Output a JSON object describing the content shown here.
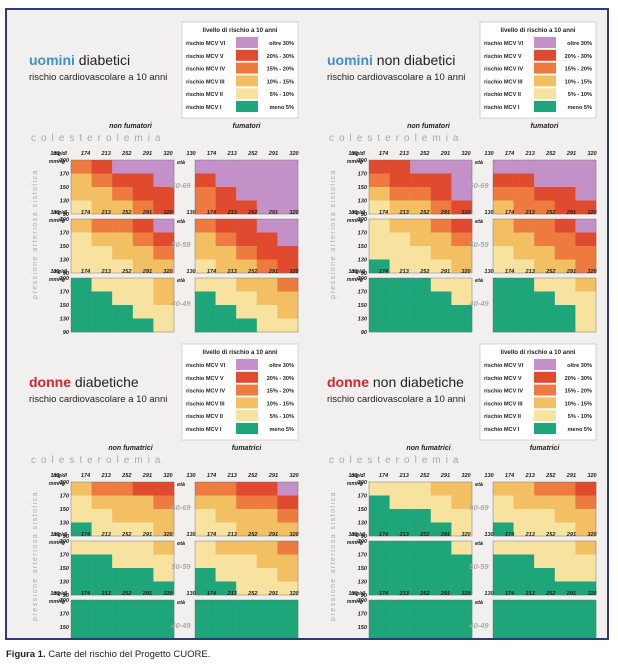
{
  "caption": {
    "label": "Figura 1.",
    "text": " Carte del rischio del Progetto CUORE."
  },
  "chart_data": {
    "type": "heatmap",
    "risk_colors": [
      "#57b98f",
      "#1ea57a",
      "#f7e2a0",
      "#f2bf62",
      "#ed7a3e",
      "#e04a2e",
      "#c391c8"
    ],
    "legend": {
      "title": "livello di rischio a 10 anni",
      "rows": [
        {
          "label": "rischio MCV  VI",
          "range": "oltre  30%",
          "level": 6
        },
        {
          "label": "rischio MCV  V",
          "range": "20% - 30%",
          "level": 5
        },
        {
          "label": "rischio MCV  IV",
          "range": "15% - 20%",
          "level": 4
        },
        {
          "label": "rischio MCV  III",
          "range": "10% - 15%",
          "level": 3
        },
        {
          "label": "rischio MCV  II",
          "range": "5% - 10%",
          "level": 2
        },
        {
          "label": "rischio MCV  I",
          "range": "meno   5%",
          "level": 1
        }
      ]
    },
    "x_unit": "mg/dl",
    "x_ticks": [
      "130",
      "174",
      "213",
      "252",
      "291",
      "320"
    ],
    "y_unit": "mmHg",
    "y_ticks": [
      "200",
      "170",
      "150",
      "130",
      "90"
    ],
    "age_label": "età",
    "xlabel": "colesterolemia",
    "ylabel": "pressione arteriosa sistolica",
    "charts": [
      {
        "title_bold": "uomini",
        "title_rest": " diabetici",
        "subtitle": "rischio cardiovascolare a 10 anni",
        "col_left": "non fumatori",
        "col_right": "fumatori",
        "rows": [
          {
            "age": "60-69",
            "left": [
              [
                4,
                5,
                6,
                6,
                6
              ],
              [
                3,
                4,
                5,
                5,
                6
              ],
              [
                3,
                3,
                4,
                5,
                5
              ],
              [
                2,
                3,
                3,
                4,
                5
              ]
            ],
            "right": [
              [
                6,
                6,
                6,
                6,
                6
              ],
              [
                5,
                6,
                6,
                6,
                6
              ],
              [
                4,
                5,
                6,
                6,
                6
              ],
              [
                4,
                5,
                5,
                6,
                6
              ]
            ]
          },
          {
            "age": "50-59",
            "left": [
              [
                3,
                4,
                4,
                5,
                6
              ],
              [
                2,
                3,
                3,
                4,
                5
              ],
              [
                2,
                2,
                3,
                3,
                4
              ],
              [
                2,
                2,
                2,
                3,
                3
              ]
            ],
            "right": [
              [
                4,
                5,
                5,
                6,
                6
              ],
              [
                3,
                4,
                5,
                5,
                6
              ],
              [
                3,
                3,
                4,
                5,
                5
              ],
              [
                2,
                3,
                3,
                4,
                5
              ]
            ]
          },
          {
            "age": "40-49",
            "left": [
              [
                1,
                2,
                2,
                2,
                3
              ],
              [
                1,
                1,
                2,
                2,
                3
              ],
              [
                1,
                1,
                1,
                2,
                2
              ],
              [
                1,
                1,
                1,
                1,
                2
              ]
            ],
            "right": [
              [
                2,
                2,
                3,
                3,
                4
              ],
              [
                1,
                2,
                2,
                3,
                3
              ],
              [
                1,
                1,
                2,
                2,
                3
              ],
              [
                1,
                1,
                1,
                2,
                2
              ]
            ]
          }
        ]
      },
      {
        "title_bold": "uomini",
        "title_rest": " non diabetici",
        "subtitle": "rischio cardiovascolare a 10 anni",
        "col_left": "non fumatori",
        "col_right": "fumatori",
        "rows": [
          {
            "age": "60-69",
            "left": [
              [
                5,
                5,
                6,
                6,
                6
              ],
              [
                4,
                5,
                5,
                5,
                6
              ],
              [
                3,
                4,
                4,
                5,
                6
              ],
              [
                2,
                3,
                3,
                4,
                5
              ]
            ],
            "right": [
              [
                6,
                6,
                6,
                6,
                6
              ],
              [
                5,
                5,
                6,
                6,
                6
              ],
              [
                4,
                4,
                5,
                5,
                6
              ],
              [
                3,
                4,
                4,
                5,
                5
              ]
            ]
          },
          {
            "age": "50-59",
            "left": [
              [
                2,
                3,
                3,
                4,
                5
              ],
              [
                2,
                2,
                3,
                3,
                4
              ],
              [
                2,
                2,
                2,
                3,
                3
              ],
              [
                1,
                2,
                2,
                2,
                3
              ]
            ],
            "right": [
              [
                3,
                4,
                4,
                5,
                6
              ],
              [
                3,
                3,
                4,
                4,
                5
              ],
              [
                2,
                3,
                3,
                4,
                4
              ],
              [
                2,
                2,
                3,
                3,
                4
              ]
            ]
          },
          {
            "age": "40-49",
            "left": [
              [
                1,
                1,
                1,
                2,
                2
              ],
              [
                1,
                1,
                1,
                1,
                2
              ],
              [
                1,
                1,
                1,
                1,
                1
              ],
              [
                1,
                1,
                1,
                1,
                1
              ]
            ],
            "right": [
              [
                1,
                1,
                2,
                2,
                3
              ],
              [
                1,
                1,
                1,
                2,
                2
              ],
              [
                1,
                1,
                1,
                1,
                2
              ],
              [
                1,
                1,
                1,
                1,
                2
              ]
            ]
          }
        ]
      },
      {
        "title_bold": "donne",
        "title_rest": " diabetiche",
        "subtitle": "rischio cardiovascolare a 10 anni",
        "col_left": "non fumatrici",
        "col_right": "fumatrici",
        "rows": [
          {
            "age": "60-69",
            "left": [
              [
                3,
                4,
                4,
                5,
                5
              ],
              [
                2,
                3,
                3,
                3,
                4
              ],
              [
                2,
                2,
                3,
                3,
                3
              ],
              [
                1,
                2,
                2,
                2,
                3
              ]
            ],
            "right": [
              [
                4,
                4,
                5,
                5,
                6
              ],
              [
                3,
                3,
                4,
                4,
                5
              ],
              [
                2,
                3,
                3,
                3,
                4
              ],
              [
                2,
                2,
                3,
                3,
                3
              ]
            ]
          },
          {
            "age": "50-59",
            "left": [
              [
                2,
                2,
                2,
                2,
                3
              ],
              [
                1,
                1,
                2,
                2,
                2
              ],
              [
                1,
                1,
                1,
                1,
                2
              ],
              [
                1,
                1,
                1,
                1,
                1
              ]
            ],
            "right": [
              [
                2,
                3,
                3,
                3,
                4
              ],
              [
                2,
                2,
                2,
                3,
                3
              ],
              [
                1,
                2,
                2,
                2,
                3
              ],
              [
                1,
                1,
                2,
                2,
                2
              ]
            ]
          },
          {
            "age": "40-49",
            "left": [
              [
                1,
                1,
                1,
                1,
                1
              ],
              [
                1,
                1,
                1,
                1,
                1
              ],
              [
                1,
                1,
                1,
                1,
                1
              ],
              [
                1,
                1,
                1,
                1,
                1
              ]
            ],
            "right": [
              [
                1,
                1,
                1,
                1,
                1
              ],
              [
                1,
                1,
                1,
                1,
                1
              ],
              [
                1,
                1,
                1,
                1,
                1
              ],
              [
                1,
                1,
                1,
                1,
                1
              ]
            ]
          }
        ]
      },
      {
        "title_bold": "donne",
        "title_rest": " non diabetiche",
        "subtitle": "rischio cardiovascolare a 10 anni",
        "col_left": "non fumatrici",
        "col_right": "fumatrici",
        "rows": [
          {
            "age": "60-69",
            "left": [
              [
                2,
                2,
                2,
                3,
                3
              ],
              [
                1,
                2,
                2,
                2,
                3
              ],
              [
                1,
                1,
                1,
                2,
                2
              ],
              [
                1,
                1,
                1,
                1,
                2
              ]
            ],
            "right": [
              [
                3,
                3,
                4,
                4,
                5
              ],
              [
                2,
                3,
                3,
                3,
                4
              ],
              [
                2,
                2,
                2,
                3,
                3
              ],
              [
                1,
                2,
                2,
                2,
                3
              ]
            ]
          },
          {
            "age": "50-59",
            "left": [
              [
                1,
                1,
                1,
                1,
                2
              ],
              [
                1,
                1,
                1,
                1,
                1
              ],
              [
                1,
                1,
                1,
                1,
                1
              ],
              [
                1,
                1,
                1,
                1,
                1
              ]
            ],
            "right": [
              [
                2,
                2,
                2,
                2,
                3
              ],
              [
                1,
                1,
                2,
                2,
                2
              ],
              [
                1,
                1,
                1,
                2,
                2
              ],
              [
                1,
                1,
                1,
                1,
                1
              ]
            ]
          },
          {
            "age": "40-49",
            "left": [
              [
                1,
                1,
                1,
                1,
                1
              ],
              [
                1,
                1,
                1,
                1,
                1
              ],
              [
                1,
                1,
                1,
                1,
                1
              ],
              [
                1,
                1,
                1,
                1,
                1
              ]
            ],
            "right": [
              [
                1,
                1,
                1,
                1,
                1
              ],
              [
                1,
                1,
                1,
                1,
                1
              ],
              [
                1,
                1,
                1,
                1,
                1
              ],
              [
                1,
                1,
                1,
                1,
                1
              ]
            ]
          }
        ]
      }
    ]
  }
}
